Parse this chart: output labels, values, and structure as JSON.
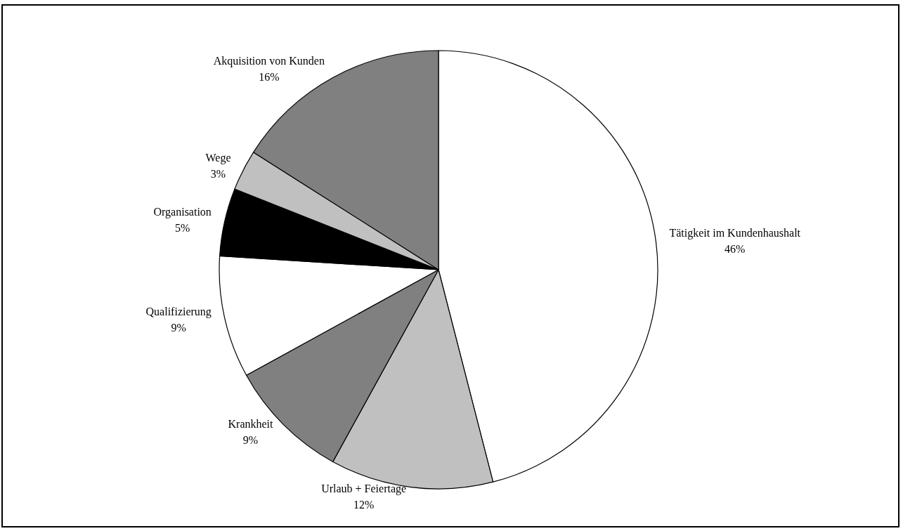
{
  "chart_data": {
    "type": "pie",
    "categories": [
      "Tätigkeit im Kundenhaushalt",
      "Urlaub + Feiertage",
      "Krankheit",
      "Qualifizierung",
      "Organisation",
      "Wege",
      "Akquisition von Kunden"
    ],
    "values": [
      46,
      12,
      9,
      9,
      5,
      3,
      16
    ],
    "value_labels": [
      "46%",
      "12%",
      "9%",
      "9%",
      "5%",
      "3%",
      "16%"
    ],
    "colors": [
      "#ffffff",
      "#c0c0c0",
      "#808080",
      "#ffffff",
      "#000000",
      "#c0c0c0",
      "#808080"
    ],
    "legend": false
  }
}
